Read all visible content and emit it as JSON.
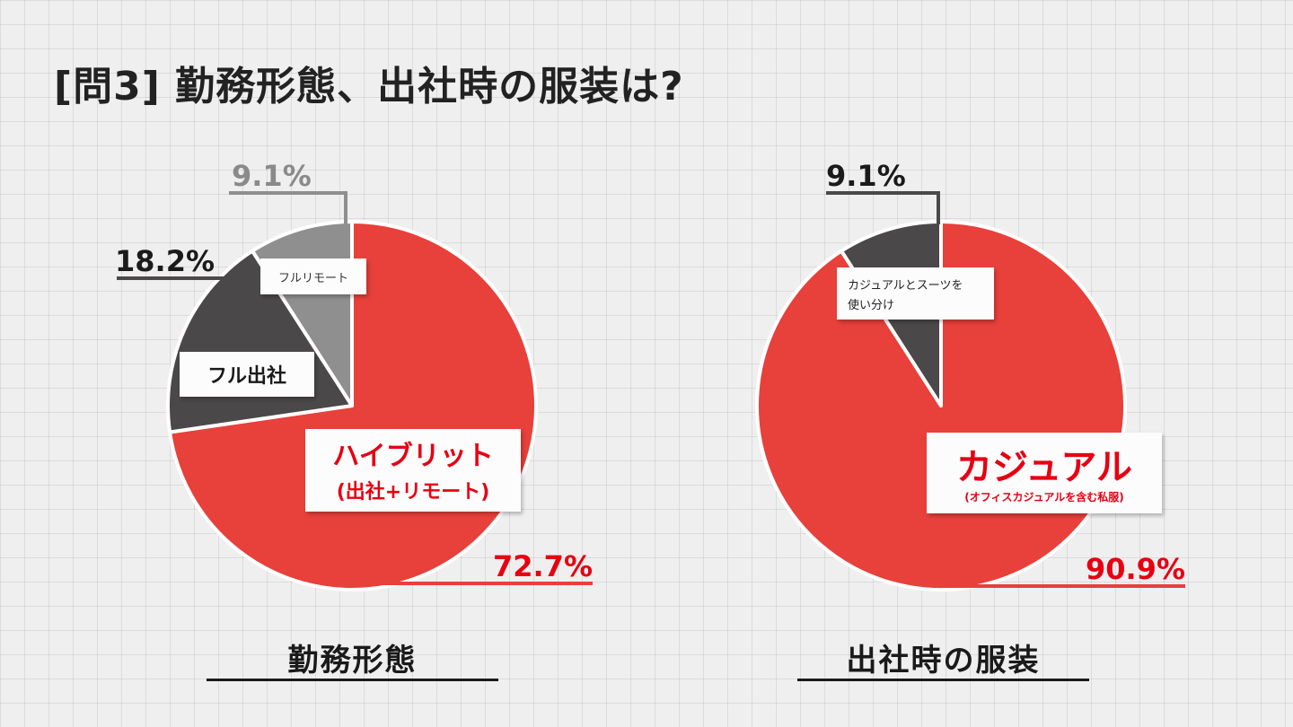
{
  "heading": "[問3] 勤務形態、出社時の服装は?",
  "colors": {
    "red": "#e8403a",
    "dark": "#4a4848",
    "grey": "#8f8f8f",
    "text_red": "#e60012"
  },
  "chart_data": [
    {
      "type": "pie",
      "caption": "勤務形態",
      "slices": [
        {
          "label": "ハイブリット",
          "sublabel": "(出社+リモート)",
          "value": 72.7,
          "value_label": "72.7%",
          "color": "#e8403a"
        },
        {
          "label": "フル出社",
          "sublabel": "",
          "value": 18.2,
          "value_label": "18.2%",
          "color": "#4a4848"
        },
        {
          "label": "フルリモート",
          "sublabel": "",
          "value": 9.1,
          "value_label": "9.1%",
          "color": "#8f8f8f"
        }
      ]
    },
    {
      "type": "pie",
      "caption": "出社時の服装",
      "slices": [
        {
          "label": "カジュアル",
          "sublabel": "(オフィスカジュアルを含む私服)",
          "value": 90.9,
          "value_label": "90.9%",
          "color": "#e8403a"
        },
        {
          "label": "カジュアルとスーツを使い分け",
          "sublabel": "",
          "value": 9.1,
          "value_label": "9.1%",
          "color": "#4a4848"
        }
      ]
    }
  ]
}
